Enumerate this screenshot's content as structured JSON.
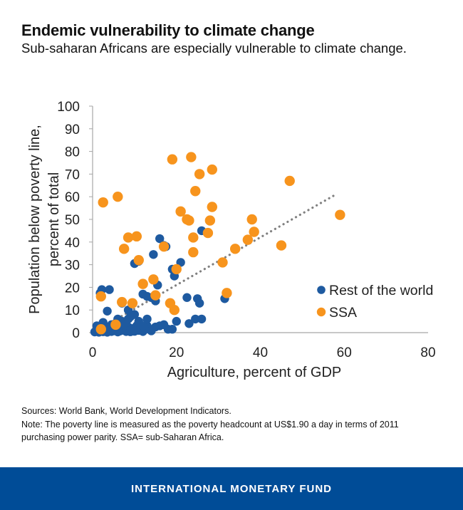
{
  "header": {
    "title": "Endemic vulnerability to climate change",
    "subtitle": "Sub-saharan Africans are especially vulnerable to climate change."
  },
  "chart_data": {
    "type": "scatter",
    "xlabel": "Agriculture, percent of GDP",
    "ylabel_lines": [
      "Population below poverty line,",
      "percent of total"
    ],
    "xlim": [
      0,
      80
    ],
    "ylim": [
      0,
      100
    ],
    "xticks": [
      "0",
      "20",
      "40",
      "60",
      "80"
    ],
    "yticks": [
      "0",
      "10",
      "20",
      "30",
      "40",
      "50",
      "60",
      "70",
      "80",
      "90",
      "100"
    ],
    "grid": false,
    "legend_position": "right",
    "trendline": {
      "style": "dotted",
      "color": "#808080",
      "from": [
        0,
        0
      ],
      "to": [
        58,
        61
      ]
    },
    "series": [
      {
        "name": "Rest of the world",
        "color": "#1e5aa0",
        "points": [
          [
            0.5,
            0.3
          ],
          [
            1,
            0.5
          ],
          [
            1.5,
            0.2
          ],
          [
            2,
            1
          ],
          [
            2.5,
            0.4
          ],
          [
            3,
            0.6
          ],
          [
            3.5,
            0.2
          ],
          [
            4,
            1.2
          ],
          [
            4.5,
            0.5
          ],
          [
            5,
            0.8
          ],
          [
            5.5,
            1.5
          ],
          [
            6,
            0.3
          ],
          [
            6.5,
            0.7
          ],
          [
            7,
            2
          ],
          [
            7.5,
            1
          ],
          [
            8,
            0.5
          ],
          [
            8.5,
            2.5
          ],
          [
            9,
            0.4
          ],
          [
            9.5,
            1.8
          ],
          [
            10,
            0.6
          ],
          [
            10.5,
            3
          ],
          [
            11,
            1
          ],
          [
            11.5,
            2
          ],
          [
            12,
            0.5
          ],
          [
            12.5,
            1.5
          ],
          [
            13,
            3
          ],
          [
            13.5,
            1.5
          ],
          [
            14,
            0.8
          ],
          [
            15,
            2.5
          ],
          [
            16,
            3
          ],
          [
            17,
            3.5
          ],
          [
            18,
            1.5
          ],
          [
            19,
            1.5
          ],
          [
            1,
            3
          ],
          [
            1.5,
            2
          ],
          [
            2.5,
            4.5
          ],
          [
            3.5,
            2.5
          ],
          [
            4.5,
            3.5
          ],
          [
            5.5,
            4
          ],
          [
            6,
            6
          ],
          [
            7,
            5
          ],
          [
            7.5,
            4
          ],
          [
            8.5,
            6
          ],
          [
            9,
            7
          ],
          [
            10,
            8
          ],
          [
            11,
            5
          ],
          [
            12,
            3
          ],
          [
            13,
            6
          ],
          [
            1.8,
            17.5
          ],
          [
            2.2,
            19
          ],
          [
            3.5,
            9.5
          ],
          [
            4,
            19
          ],
          [
            7,
            13
          ],
          [
            8.5,
            10
          ],
          [
            10,
            30.5
          ],
          [
            11,
            31.5
          ],
          [
            12,
            17
          ],
          [
            13,
            16
          ],
          [
            14,
            15.5
          ],
          [
            14.5,
            34.5
          ],
          [
            15,
            14
          ],
          [
            15.5,
            21
          ],
          [
            16,
            41.5
          ],
          [
            17,
            38.5
          ],
          [
            17.5,
            38
          ],
          [
            19,
            28
          ],
          [
            19.5,
            25
          ],
          [
            21,
            31
          ],
          [
            20,
            5
          ],
          [
            22.5,
            15.5
          ],
          [
            23,
            4
          ],
          [
            24.5,
            6
          ],
          [
            25,
            15
          ],
          [
            25.5,
            13
          ],
          [
            26,
            6
          ],
          [
            26,
            45
          ],
          [
            31.5,
            15
          ]
        ]
      },
      {
        "name": "SSA",
        "color": "#f7941d",
        "points": [
          [
            2,
            1.5
          ],
          [
            2,
            16
          ],
          [
            2.5,
            57.5
          ],
          [
            5.5,
            3.5
          ],
          [
            6,
            60
          ],
          [
            7,
            13.5
          ],
          [
            7.5,
            37
          ],
          [
            8.5,
            42
          ],
          [
            9.5,
            13
          ],
          [
            10.5,
            42.5
          ],
          [
            11,
            32
          ],
          [
            12,
            21.5
          ],
          [
            14.5,
            23.5
          ],
          [
            15,
            16.5
          ],
          [
            17,
            38
          ],
          [
            18.5,
            13
          ],
          [
            19,
            76.5
          ],
          [
            19.5,
            10
          ],
          [
            20,
            28
          ],
          [
            21,
            53.5
          ],
          [
            22.5,
            50
          ],
          [
            23,
            49.5
          ],
          [
            23.5,
            77.5
          ],
          [
            24,
            35.5
          ],
          [
            24,
            42
          ],
          [
            24.5,
            62.5
          ],
          [
            25.5,
            70
          ],
          [
            27.5,
            44
          ],
          [
            28,
            49.5
          ],
          [
            28.5,
            72
          ],
          [
            28.5,
            55.5
          ],
          [
            31,
            31
          ],
          [
            32,
            17.5
          ],
          [
            34,
            37
          ],
          [
            37,
            41
          ],
          [
            38,
            50
          ],
          [
            38.5,
            44.5
          ],
          [
            45,
            38.5
          ],
          [
            47,
            67
          ],
          [
            59,
            52
          ]
        ]
      }
    ]
  },
  "notes": {
    "sources": "Sources: World Bank, World Development Indicators.",
    "note": "Note: The poverty line is measured as the poverty headcount at US$1.90 a day in terms of 2011 purchasing power parity. SSA= sub-Saharan Africa."
  },
  "footer": {
    "label": "INTERNATIONAL MONETARY FUND"
  }
}
